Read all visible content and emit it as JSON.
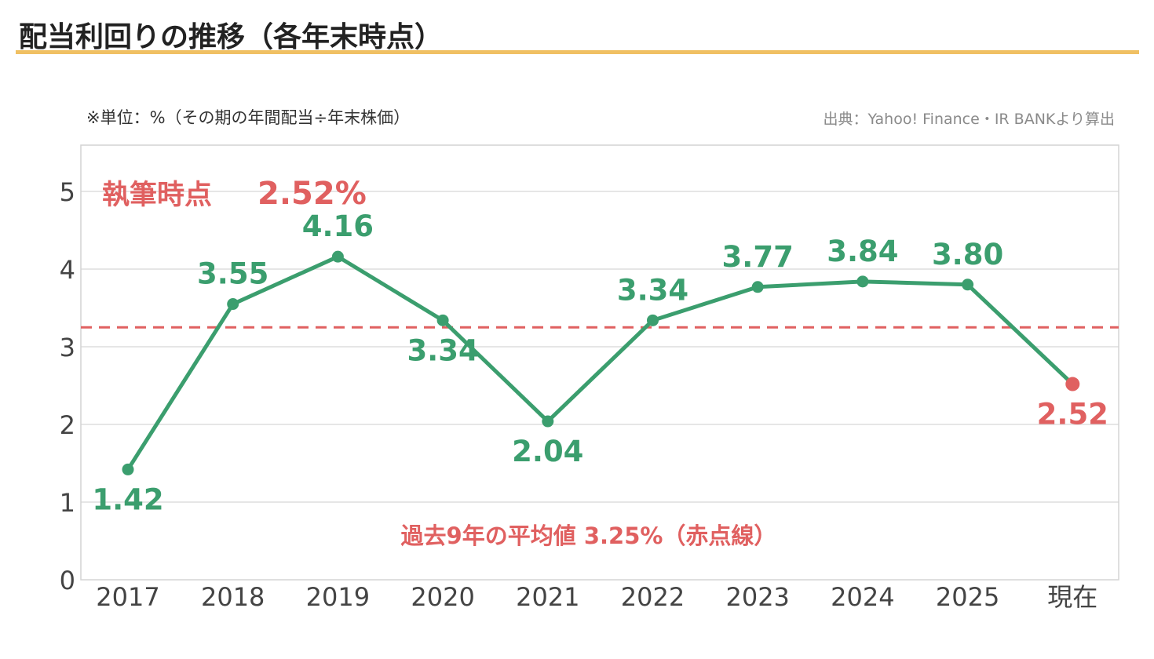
{
  "header": {
    "title": "配当利回りの推移（各年末時点）",
    "unit_note": "※単位：%（その期の年間配当÷年末株価）",
    "source_note": "出典：Yahoo! Finance・IR BANKより算出"
  },
  "annotations": {
    "current_label": "執筆時点",
    "current_value": "2.52%",
    "average_note": "過去9年の平均値 3.25%（赤点線）"
  },
  "colors": {
    "line": "#3b9e6e",
    "current": "#e06060",
    "average": "#e06060",
    "title_rule": "#f0c063",
    "grid": "#dddddd"
  },
  "chart_data": {
    "type": "line",
    "categories": [
      "2017",
      "2018",
      "2019",
      "2020",
      "2021",
      "2022",
      "2023",
      "2024",
      "2025",
      "現在"
    ],
    "values": [
      1.42,
      3.55,
      4.16,
      3.34,
      2.04,
      3.34,
      3.77,
      3.84,
      3.8,
      2.52
    ],
    "value_labels": [
      "1.42",
      "3.55",
      "4.16",
      "3.34",
      "2.04",
      "3.34",
      "3.77",
      "3.84",
      "3.80",
      "2.52"
    ],
    "label_position": [
      "below",
      "above",
      "above",
      "below",
      "below",
      "above",
      "above",
      "above",
      "above",
      "below"
    ],
    "highlight_index": 9,
    "average": 3.25,
    "yticks": [
      0,
      1,
      2,
      3,
      4,
      5
    ],
    "ylim": [
      0,
      5.6
    ],
    "grid": true
  }
}
